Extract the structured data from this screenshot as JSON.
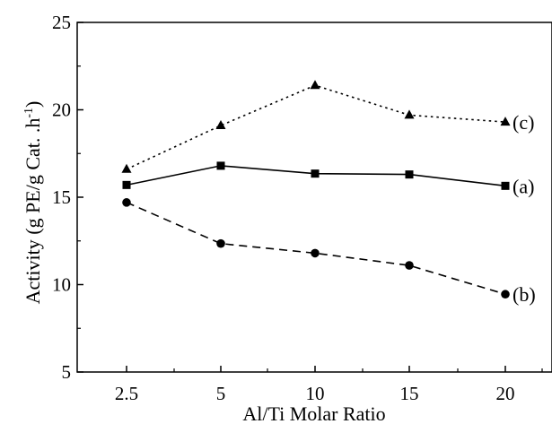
{
  "chart_data": {
    "type": "line",
    "categories": [
      "2.5",
      "5",
      "10",
      "15",
      "20"
    ],
    "xlabel": "Al/Ti Molar Ratio",
    "ylabel": "Activity (g PE/g Cat. .h",
    "ylabel_sup": "-1",
    "ylabel_close": ")",
    "ylim": [
      5,
      25
    ],
    "yticks": [
      "5",
      "10",
      "15",
      "20",
      "25"
    ],
    "grid": false,
    "series": [
      {
        "name": "(a)",
        "marker": "square",
        "line": "solid",
        "values": [
          15.7,
          16.8,
          16.35,
          16.3,
          15.65
        ]
      },
      {
        "name": "(b)",
        "marker": "circle",
        "line": "dashed",
        "values": [
          14.7,
          12.35,
          11.8,
          11.1,
          9.45
        ]
      },
      {
        "name": "(c)",
        "marker": "triangle",
        "line": "dotted",
        "values": [
          16.6,
          19.1,
          21.4,
          19.7,
          19.3
        ]
      }
    ]
  }
}
